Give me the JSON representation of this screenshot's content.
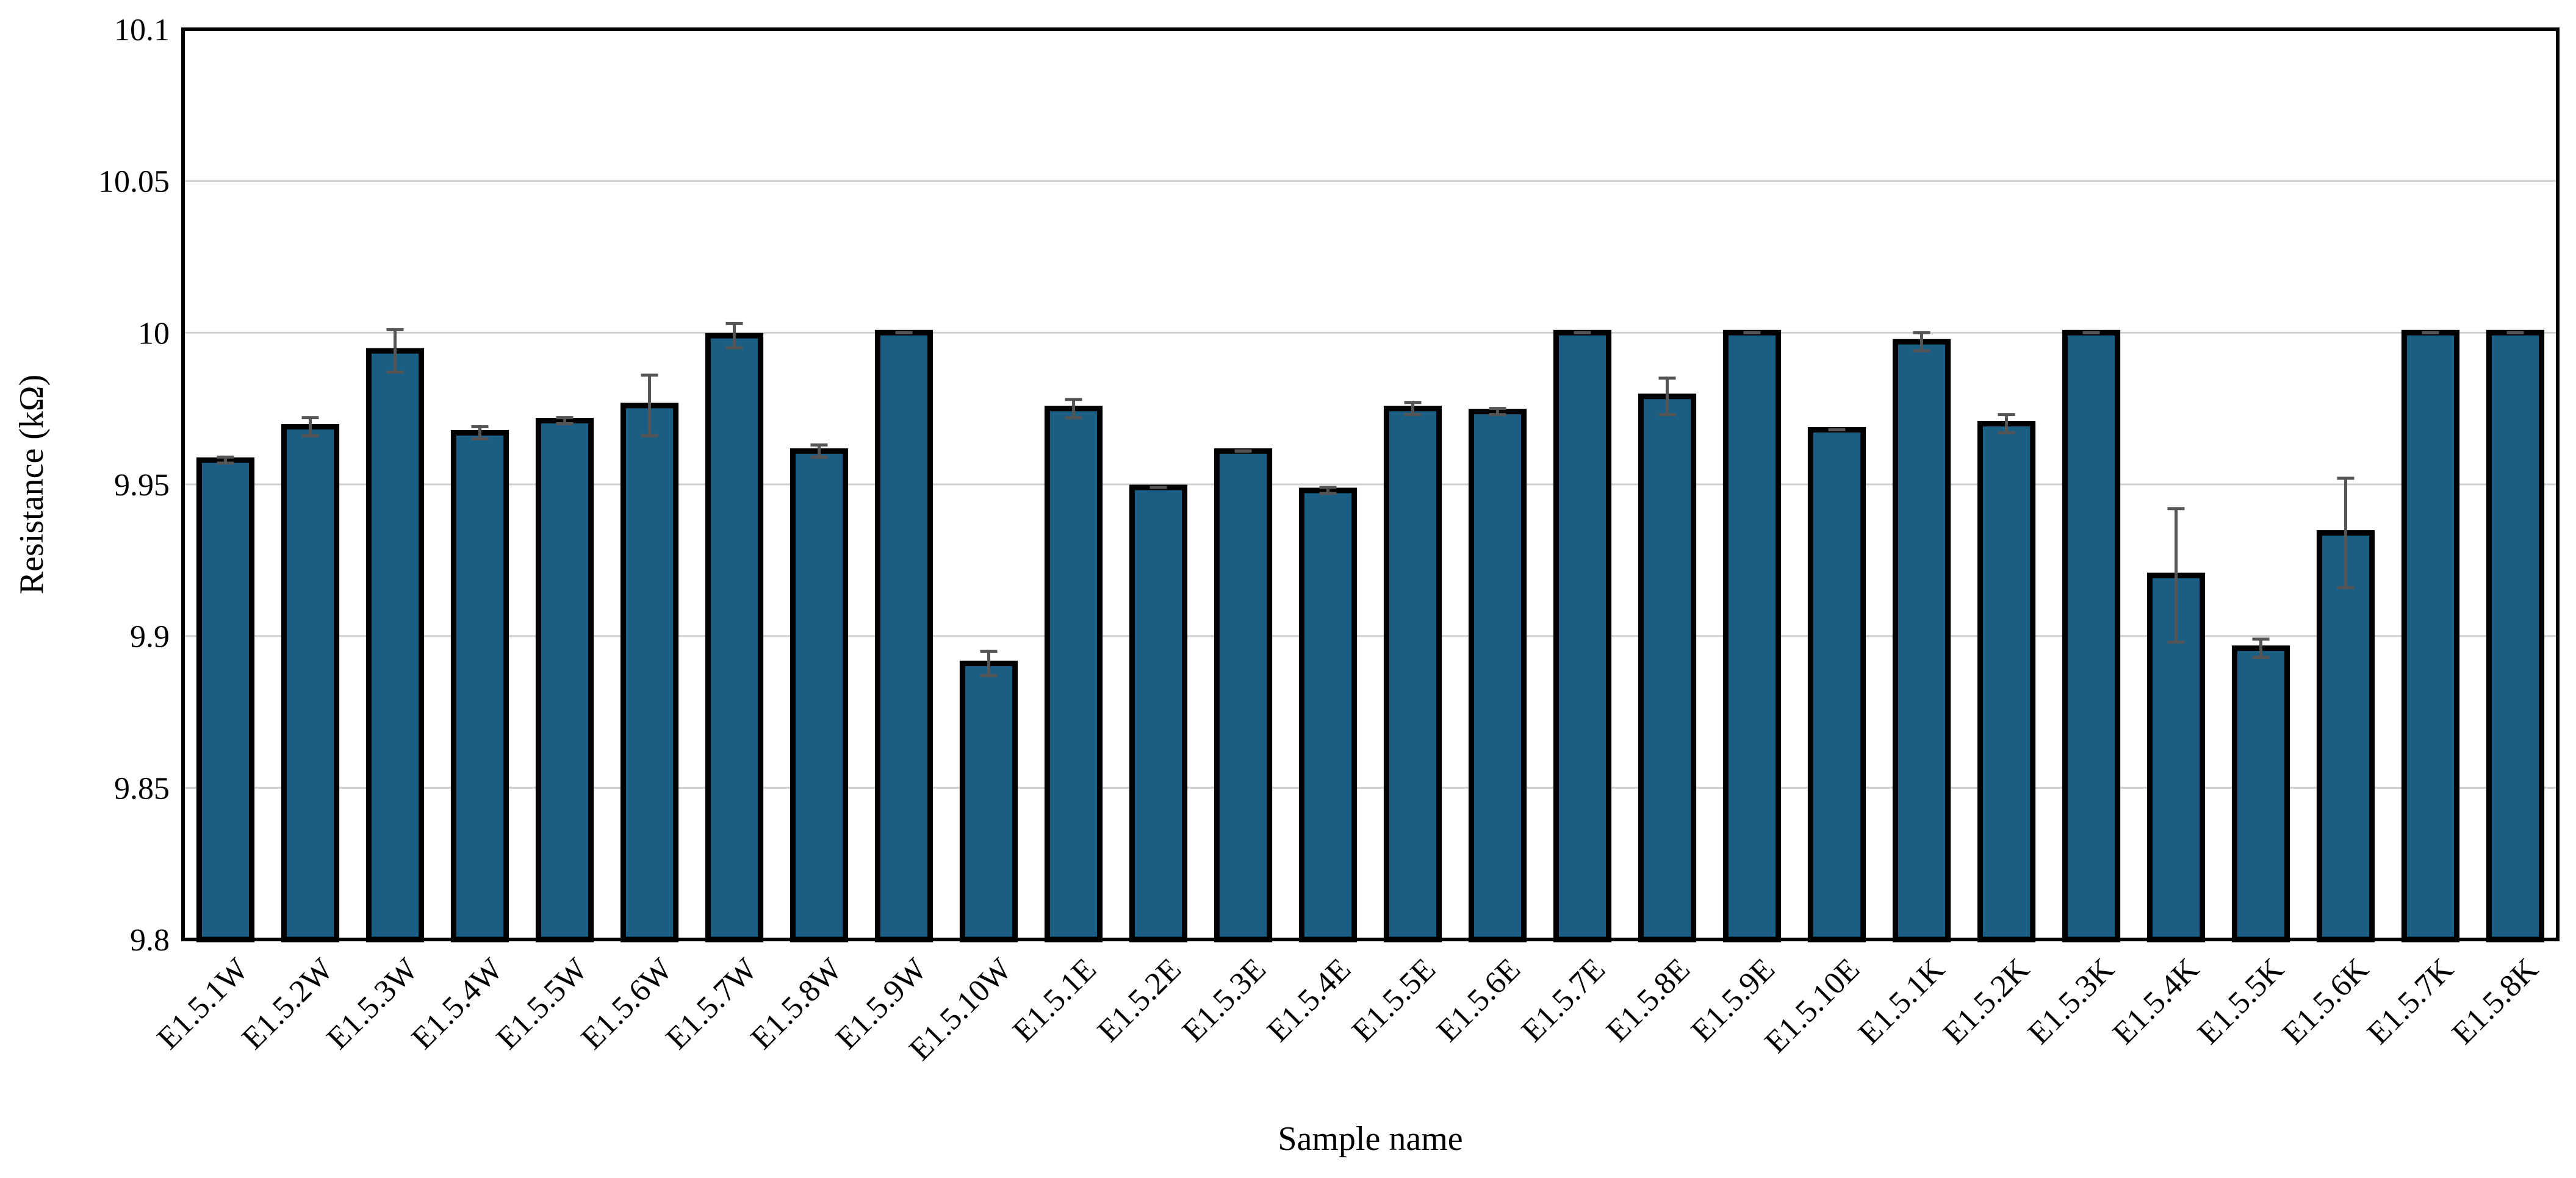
{
  "chart_data": {
    "type": "bar",
    "title": "",
    "xlabel": "Sample name",
    "ylabel": "Resistance (kΩ)",
    "ylim": [
      9.8,
      10.1
    ],
    "yticks": [
      "9.8",
      "9.85",
      "9.9",
      "9.95",
      "10",
      "10.05",
      "10.1"
    ],
    "grid": true,
    "legend": "none",
    "colors": {
      "bar": "#1b5e84",
      "bar_outline": "#000000",
      "error": "#555555",
      "grid": "#d0d0d0"
    },
    "categories": [
      "E1.5.1W",
      "E1.5.2W",
      "E1.5.3W",
      "E1.5.4W",
      "E1.5.5W",
      "E1.5.6W",
      "E1.5.7W",
      "E1.5.8W",
      "E1.5.9W",
      "E1.5.10W",
      "E1.5.1E",
      "E1.5.2E",
      "E1.5.3E",
      "E1.5.4E",
      "E1.5.5E",
      "E1.5.6E",
      "E1.5.7E",
      "E1.5.8E",
      "E1.5.9E",
      "E1.5.10E",
      "E1.5.1K",
      "E1.5.2K",
      "E1.5.3K",
      "E1.5.4K",
      "E1.5.5K",
      "E1.5.6K",
      "E1.5.7K",
      "E1.5.8K"
    ],
    "values": [
      9.958,
      9.969,
      9.994,
      9.967,
      9.971,
      9.976,
      9.999,
      9.961,
      10.0,
      9.891,
      9.975,
      9.949,
      9.961,
      9.948,
      9.975,
      9.974,
      10.0,
      9.979,
      10.0,
      9.968,
      9.997,
      9.97,
      10.0,
      9.92,
      9.896,
      9.934,
      10.0,
      10.0
    ],
    "errors": [
      0.001,
      0.003,
      0.007,
      0.002,
      0.001,
      0.01,
      0.004,
      0.002,
      0.0,
      0.004,
      0.003,
      0.0,
      0.0,
      0.001,
      0.002,
      0.001,
      0.0,
      0.006,
      0.0,
      0.0,
      0.003,
      0.003,
      0.0,
      0.022,
      0.003,
      0.018,
      0.0,
      0.0
    ]
  }
}
